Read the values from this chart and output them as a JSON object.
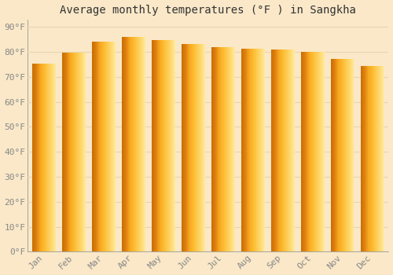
{
  "title": "Average monthly temperatures (°F ) in Sangkha",
  "months": [
    "Jan",
    "Feb",
    "Mar",
    "Apr",
    "May",
    "Jun",
    "Jul",
    "Aug",
    "Sep",
    "Oct",
    "Nov",
    "Dec"
  ],
  "values": [
    75.2,
    79.8,
    84.0,
    86.0,
    84.7,
    83.1,
    81.9,
    81.3,
    81.1,
    80.1,
    77.2,
    74.5
  ],
  "bar_color_left": "#E8850A",
  "bar_color_mid": "#FDB92E",
  "bar_color_right": "#FFD966",
  "background_color": "#FAE8C8",
  "plot_bg_color": "#FAE8C8",
  "grid_color": "#E8D5B0",
  "ytick_labels": [
    "0°F",
    "10°F",
    "20°F",
    "30°F",
    "40°F",
    "50°F",
    "60°F",
    "70°F",
    "80°F",
    "90°F"
  ],
  "ytick_values": [
    0,
    10,
    20,
    30,
    40,
    50,
    60,
    70,
    80,
    90
  ],
  "ylim": [
    0,
    93
  ],
  "title_fontsize": 10,
  "tick_fontsize": 8,
  "tick_color": "#888888",
  "font_family": "monospace",
  "spine_color": "#888888"
}
